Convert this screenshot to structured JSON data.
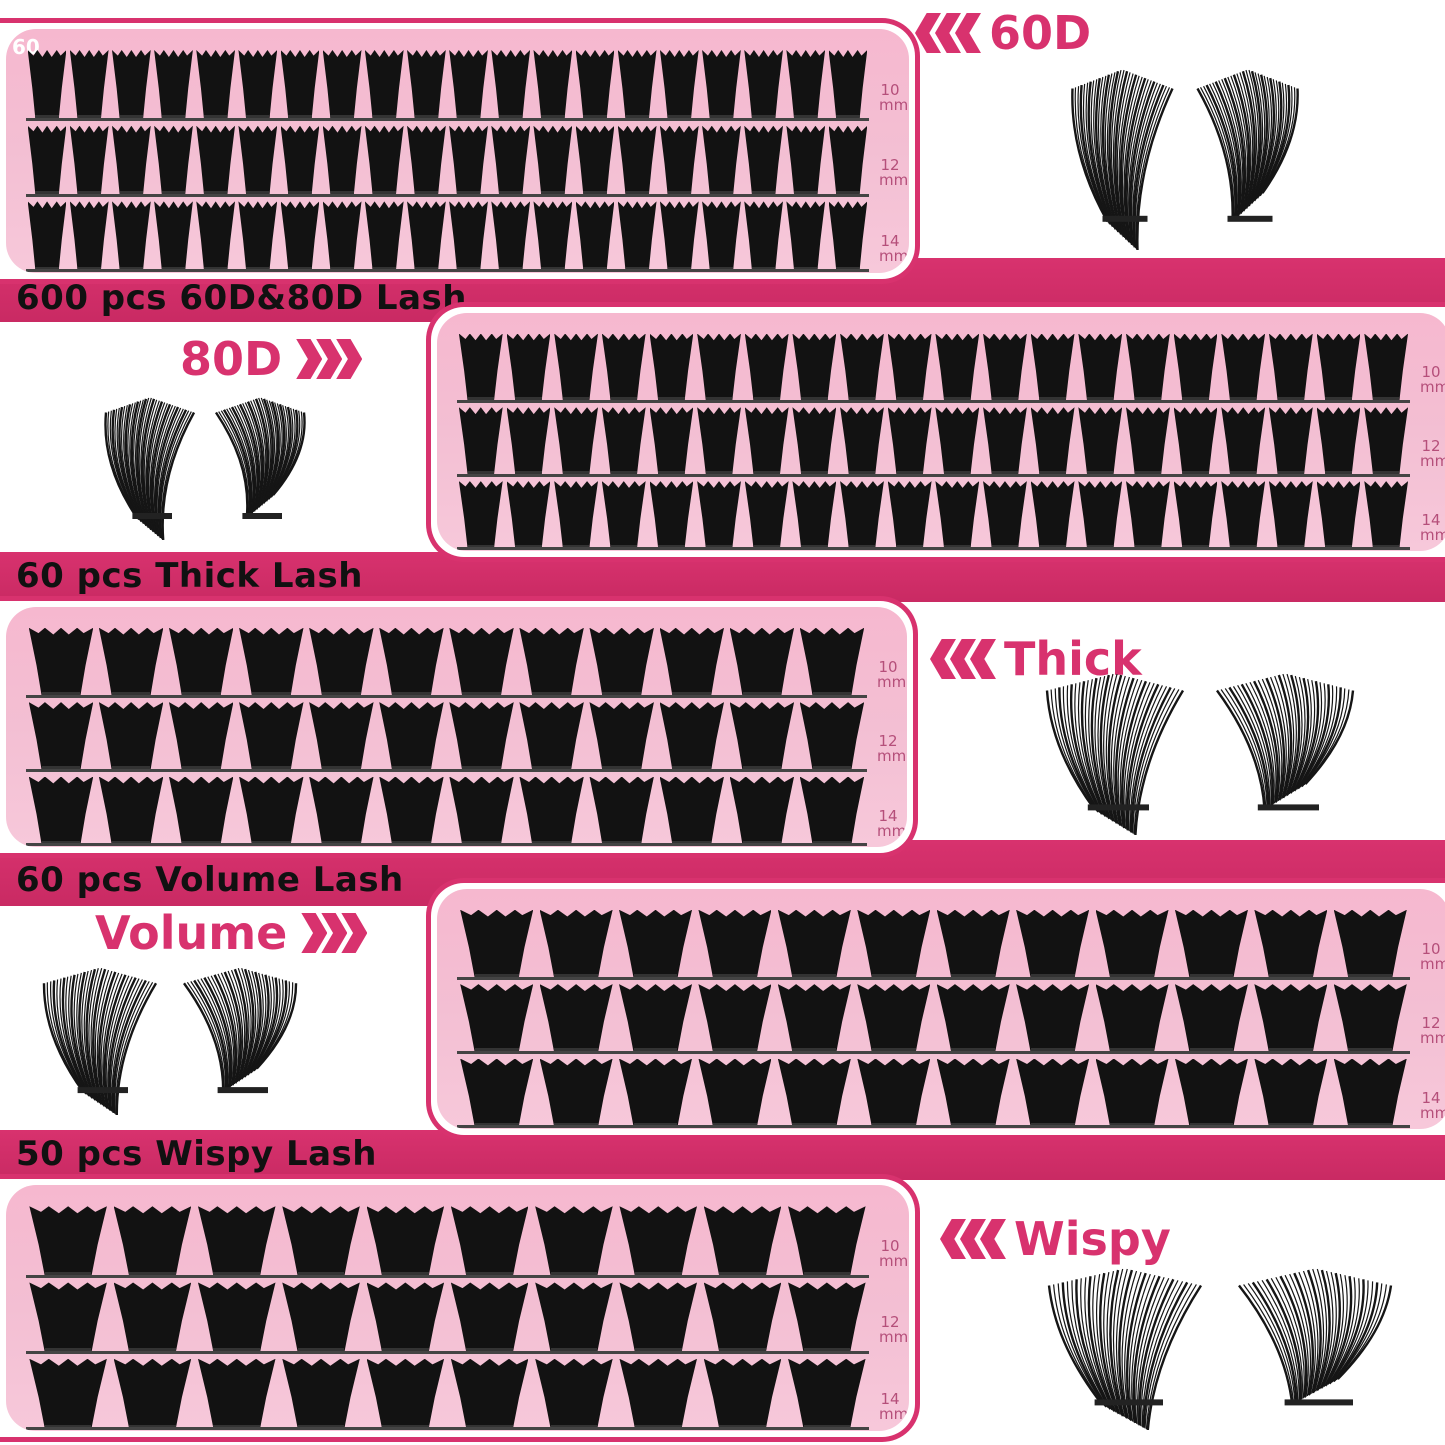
{
  "accent_color": "#d8326e",
  "trays": [
    {
      "id": "tray-60d",
      "corner_label": "60",
      "mm_marks": [
        "10 mm",
        "12 mm",
        "14 mm"
      ],
      "clusters_per_row": 20
    },
    {
      "id": "tray-80d",
      "corner_label": "",
      "mm_marks": [
        "10 mm",
        "12 mm",
        "14 mm"
      ],
      "clusters_per_row": 20
    },
    {
      "id": "tray-thick",
      "corner_label": "",
      "mm_marks": [
        "10 mm",
        "12 mm",
        "14 mm"
      ],
      "clusters_per_row": 12
    },
    {
      "id": "tray-volume",
      "corner_label": "",
      "mm_marks": [
        "10 mm",
        "12 mm",
        "14 mm"
      ],
      "clusters_per_row": 12
    },
    {
      "id": "tray-wispy",
      "corner_label": "",
      "mm_marks": [
        "10 mm",
        "12 mm",
        "14 mm"
      ],
      "clusters_per_row": 10
    }
  ],
  "headings": [
    "600 pcs 60D&80D Lash",
    "60 pcs Thick Lash",
    "60 pcs Volume Lash",
    "50 pcs Wispy Lash"
  ],
  "tags": [
    {
      "text": "60D",
      "arrow": "left"
    },
    {
      "text": "80D",
      "arrow": "right"
    },
    {
      "text": "Thick",
      "arrow": "left"
    },
    {
      "text": "Volume",
      "arrow": "right"
    },
    {
      "text": "Wispy",
      "arrow": "left"
    }
  ],
  "icons": {
    "arrow_left": "triple-chevron-left-icon",
    "arrow_right": "triple-chevron-right-icon"
  }
}
